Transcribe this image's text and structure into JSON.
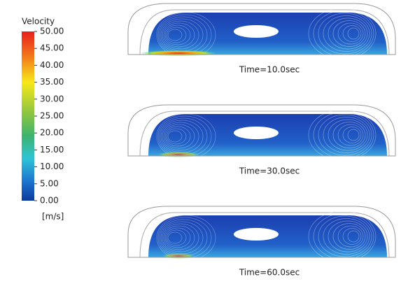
{
  "legend": {
    "title": "Velocity",
    "ticks": [
      "50.00",
      "45.00",
      "40.00",
      "35.00",
      "30.00",
      "25.00",
      "20.00",
      "15.00",
      "10.00",
      "5.00",
      "0.00"
    ],
    "unit": "[m/s]"
  },
  "panels": [
    {
      "caption": "Time=10.0sec"
    },
    {
      "caption": "Time=30.0sec"
    },
    {
      "caption": "Time=60.0sec"
    }
  ]
}
